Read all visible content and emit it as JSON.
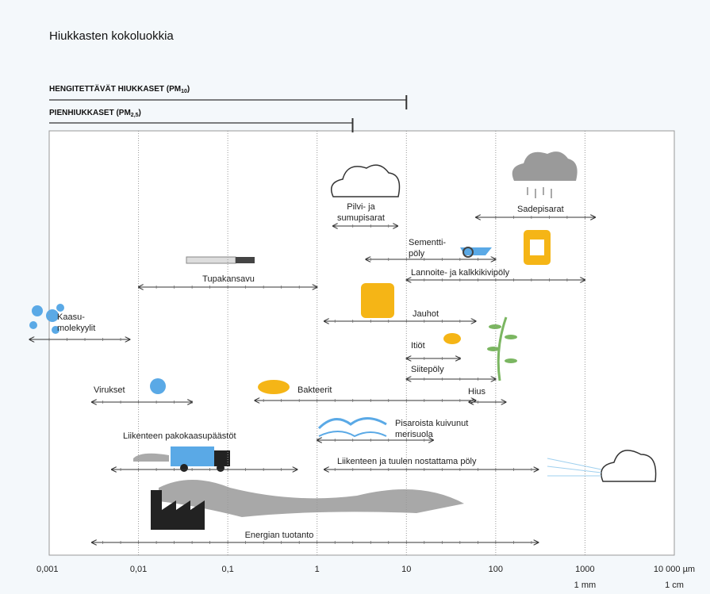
{
  "title": "Hiukkasten kokoluokkia",
  "pm": [
    {
      "prefix": "HENGITETTÄVÄT HIUKKASET (PM",
      "sub": "10",
      "suffix": ")",
      "range": [
        0.001,
        10
      ]
    },
    {
      "prefix": "PIENHIUKKASET (PM",
      "sub": "2,5",
      "suffix": ")",
      "range": [
        0.001,
        2.5
      ]
    }
  ],
  "axis": {
    "log": true,
    "xlim": [
      0.001,
      10000
    ],
    "xticks": [
      {
        "value": 0.001,
        "label": "0,001"
      },
      {
        "value": 0.01,
        "label": "0,01"
      },
      {
        "value": 0.1,
        "label": "0,1"
      },
      1,
      10,
      100,
      1000,
      {
        "value": 10000,
        "label": "10 000 µm"
      }
    ],
    "unit_labels": [
      {
        "value": 1000,
        "label": "1 mm"
      },
      {
        "value": 10000,
        "label": "1 cm"
      }
    ]
  },
  "items": [
    {
      "label": [
        "Pilvi- ja",
        "sumupisarat"
      ],
      "range": [
        1.5,
        8
      ]
    },
    {
      "label": [
        "Sadepisarat"
      ],
      "range": [
        60,
        1300
      ]
    },
    {
      "label": [
        "Sementti-",
        "pöly"
      ],
      "range": [
        3.5,
        100
      ]
    },
    {
      "label": [
        "Lannoite- ja kalkkikivipöly"
      ],
      "range": [
        10,
        1000
      ]
    },
    {
      "label": [
        "Tupakansavu"
      ],
      "range": [
        0.01,
        1
      ]
    },
    {
      "label": [
        "Jauhot"
      ],
      "range": [
        1.2,
        60
      ]
    },
    {
      "label": [
        "Kaasu-",
        "molekyylit"
      ],
      "range": [
        0.0006,
        0.008
      ]
    },
    {
      "label": [
        "Itiöt"
      ],
      "range": [
        10,
        40
      ]
    },
    {
      "label": [
        "Siitepöly"
      ],
      "range": [
        10,
        100
      ]
    },
    {
      "label": [
        "Virukset"
      ],
      "range": [
        0.003,
        0.04
      ]
    },
    {
      "label": [
        "Bakteerit"
      ],
      "range": [
        0.2,
        60
      ]
    },
    {
      "label": [
        "Hius"
      ],
      "range": [
        50,
        130
      ]
    },
    {
      "label": [
        "Pisaroista kuivunut",
        "merisuola"
      ],
      "range": [
        1,
        20
      ]
    },
    {
      "label": [
        "Liikenteen pakokaasupäästöt"
      ],
      "range": [
        0.005,
        0.6
      ]
    },
    {
      "label": [
        "Liikenteen ja tuulen nostattama pöly"
      ],
      "range": [
        1.2,
        300
      ]
    },
    {
      "label": [
        "Energian tuotanto"
      ],
      "range": [
        0.003,
        300
      ]
    }
  ]
}
